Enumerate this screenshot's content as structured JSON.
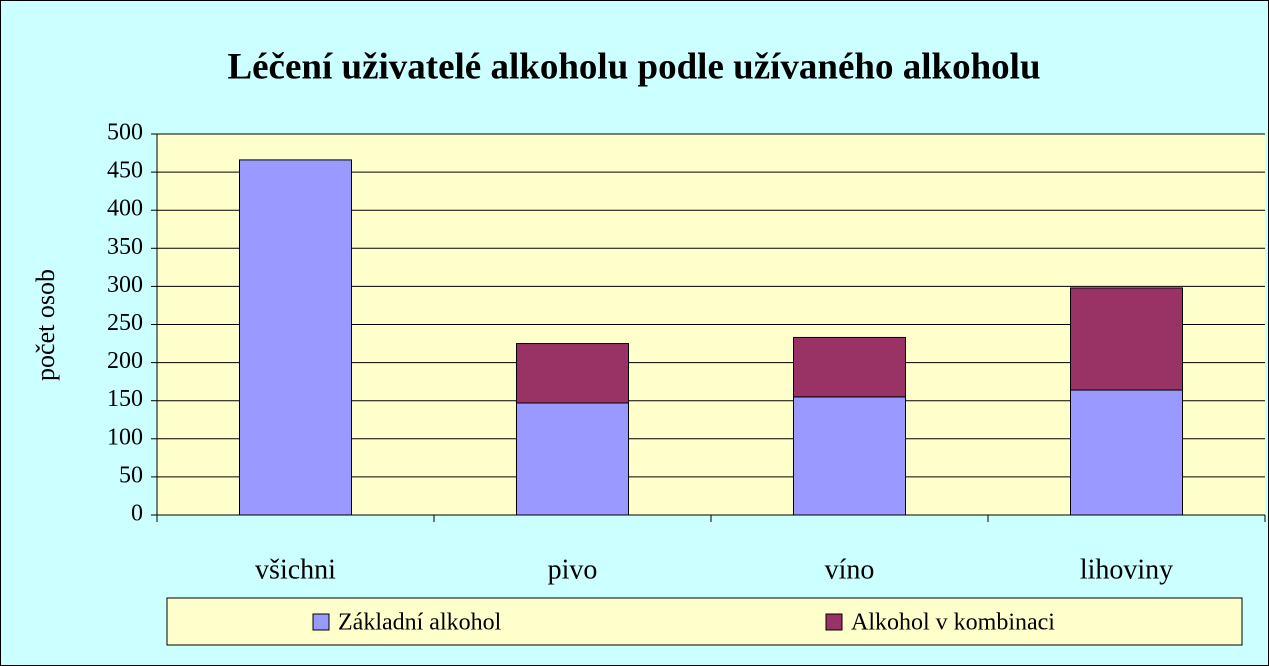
{
  "chart_data": {
    "type": "stacked_bar",
    "title": "Léčení uživatelé alkoholu podle užívaného alkoholu",
    "y_label": "počet osob",
    "categories": [
      "všichni",
      "pivo",
      "víno",
      "lihoviny"
    ],
    "series": [
      {
        "name": "Základní alkohol",
        "color": "#9999ff",
        "values": [
          466,
          147,
          155,
          164
        ]
      },
      {
        "name": "Alkohol v kombinaci",
        "color": "#993366",
        "values": [
          null,
          78,
          78,
          134
        ]
      }
    ],
    "ylim": [
      0,
      500
    ],
    "yticks": [
      0,
      50,
      100,
      150,
      200,
      250,
      300,
      350,
      400,
      450,
      500
    ],
    "grid": true,
    "legend": "bottom"
  }
}
